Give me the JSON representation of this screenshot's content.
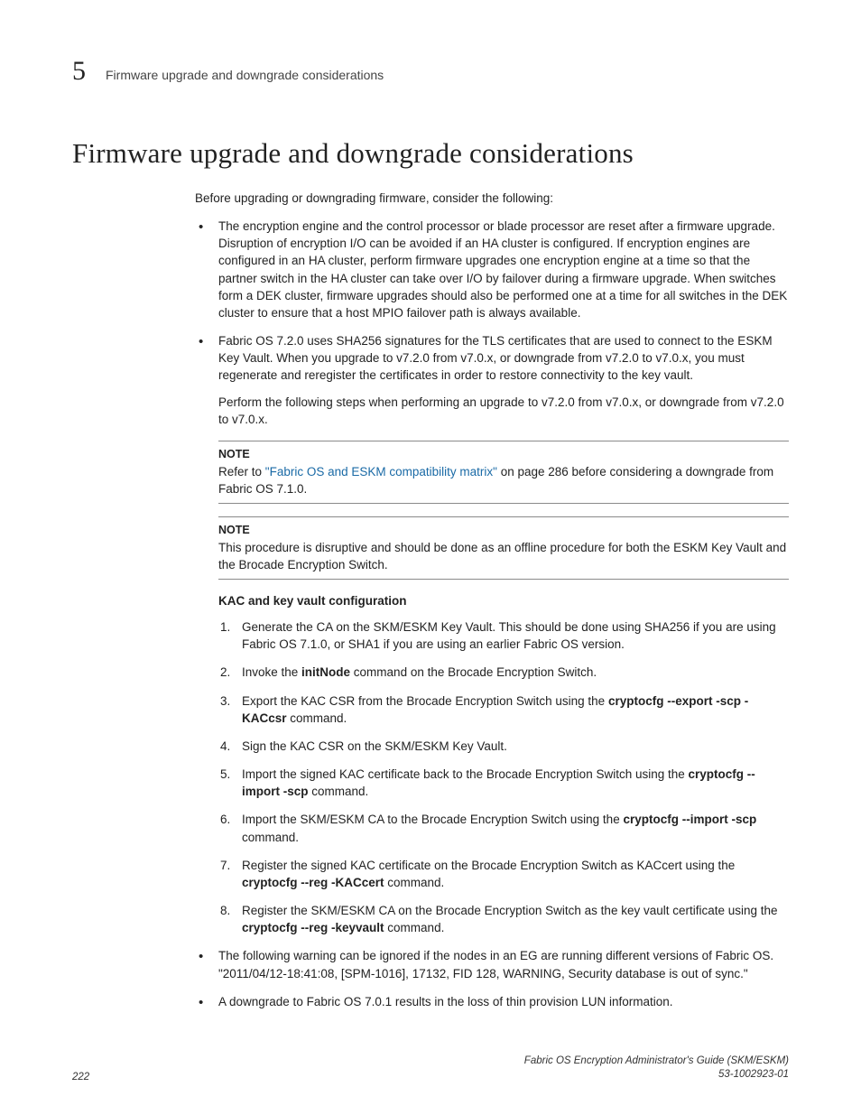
{
  "header": {
    "chapter_number": "5",
    "running_title": "Firmware upgrade and downgrade considerations"
  },
  "heading": "Firmware upgrade and downgrade considerations",
  "intro": "Before upgrading or downgrading firmware, consider the following:",
  "bullet1": "The encryption engine and the control processor or blade processor are reset after a firmware upgrade. Disruption of encryption I/O can be avoided if an HA cluster is configured. If encryption engines are configured in an HA cluster, perform firmware upgrades one encryption engine at a time so that the partner switch in the HA cluster can take over I/O by failover during a firmware upgrade. When switches form a DEK cluster, firmware upgrades should also be performed one at a time for all switches in the DEK cluster to ensure that a host MPIO failover path is always available.",
  "bullet2": {
    "p1": "Fabric OS 7.2.0 uses SHA256 signatures for the TLS certificates that are used to connect to the ESKM Key Vault. When you upgrade to v7.2.0 from v7.0.x, or downgrade from v7.2.0 to v7.0.x, you must regenerate and reregister the certificates in order to restore connectivity to the key vault.",
    "p2": "Perform the following steps when performing an upgrade to v7.2.0 from v7.0.x, or downgrade from v7.2.0 to v7.0.x."
  },
  "note1": {
    "label": "NOTE",
    "pre": "Refer to ",
    "link": "\"Fabric OS and ESKM compatibility matrix\"",
    "post": " on page 286 before considering a downgrade from Fabric OS 7.1.0."
  },
  "note2": {
    "label": "NOTE",
    "text": "This procedure is disruptive and should be done as an offline procedure for both the ESKM Key Vault and the Brocade Encryption Switch."
  },
  "subhead": "KAC and key vault configuration",
  "steps": {
    "s1": "Generate the CA on the SKM/ESKM Key Vault. This should be done using SHA256 if you are using Fabric OS 7.1.0, or SHA1 if you are using an earlier Fabric OS version.",
    "s2a": "Invoke the ",
    "s2b": "initNode",
    "s2c": " command on the Brocade Encryption Switch.",
    "s3a": "Export the KAC CSR from the Brocade Encryption Switch using the ",
    "s3b": "cryptocfg  --export  -scp  -KACcsr",
    "s3c": " command.",
    "s4": "Sign the KAC CSR on the SKM/ESKM Key Vault.",
    "s5a": "Import the signed KAC certificate back to the Brocade Encryption Switch using the ",
    "s5b": "cryptocfg --import  -scp",
    "s5c": " command.",
    "s6a": "Import the SKM/ESKM CA to the Brocade Encryption Switch using the ",
    "s6b": "cryptocfg  --import  -scp",
    "s6c": " command.",
    "s7a": "Register the signed KAC certificate on the Brocade Encryption Switch as KACcert using the ",
    "s7b": "cryptocfg  --reg  -KACcert",
    "s7c": " command.",
    "s8a": "Register the SKM/ESKM CA on the Brocade Encryption Switch as the key vault certificate using the ",
    "s8b": "cryptocfg  --reg  -keyvault",
    "s8c": " command."
  },
  "bullet3": "The following warning can be ignored if the nodes in an EG are running different versions of Fabric OS.\n\"2011/04/12-18:41:08, [SPM-1016], 17132, FID 128, WARNING, Security database is out of sync.\"",
  "bullet4": "A downgrade to Fabric OS 7.0.1 results in the loss of thin provision LUN information.",
  "footer": {
    "page": "222",
    "doc_title": "Fabric OS Encryption Administrator's Guide (SKM/ESKM)",
    "doc_num": "53-1002923-01"
  },
  "colors": {
    "text": "#222222",
    "link": "#1a6aa6",
    "rule": "#8a8a8a",
    "background": "#ffffff"
  },
  "fonts": {
    "body": "Arial",
    "heading": "Georgia",
    "body_size_pt": 10,
    "heading_size_pt": 23,
    "chapnum_size_pt": 22
  }
}
